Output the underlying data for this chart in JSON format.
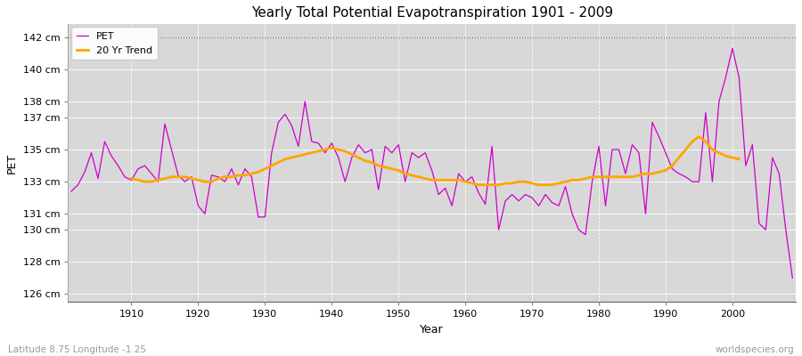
{
  "title": "Yearly Total Potential Evapotranspiration 1901 - 2009",
  "xlabel": "Year",
  "ylabel": "PET",
  "subtitle_left": "Latitude 8.75 Longitude -1.25",
  "subtitle_right": "worldspecies.org",
  "pet_color": "#cc00cc",
  "trend_color": "#ffa500",
  "fig_bg_color": "#ffffff",
  "plot_bg_color": "#d8d8d8",
  "ylim": [
    125.5,
    142.8
  ],
  "yticks": [
    126,
    128,
    130,
    131,
    133,
    135,
    137,
    138,
    140,
    142
  ],
  "ytick_labels": [
    "126 cm",
    "128 cm",
    "130 cm",
    "131 cm",
    "133 cm",
    "135 cm",
    "137 cm",
    "138 cm",
    "140 cm",
    "142 cm"
  ],
  "xlim": [
    1900.5,
    2009.5
  ],
  "xticks": [
    1910,
    1920,
    1930,
    1940,
    1950,
    1960,
    1970,
    1980,
    1990,
    2000
  ],
  "years": [
    1901,
    1902,
    1903,
    1904,
    1905,
    1906,
    1907,
    1908,
    1909,
    1910,
    1911,
    1912,
    1913,
    1914,
    1915,
    1916,
    1917,
    1918,
    1919,
    1920,
    1921,
    1922,
    1923,
    1924,
    1925,
    1926,
    1927,
    1928,
    1929,
    1930,
    1931,
    1932,
    1933,
    1934,
    1935,
    1936,
    1937,
    1938,
    1939,
    1940,
    1941,
    1942,
    1943,
    1944,
    1945,
    1946,
    1947,
    1948,
    1949,
    1950,
    1951,
    1952,
    1953,
    1954,
    1955,
    1956,
    1957,
    1958,
    1959,
    1960,
    1961,
    1962,
    1963,
    1964,
    1965,
    1966,
    1967,
    1968,
    1969,
    1970,
    1971,
    1972,
    1973,
    1974,
    1975,
    1976,
    1977,
    1978,
    1979,
    1980,
    1981,
    1982,
    1983,
    1984,
    1985,
    1986,
    1987,
    1988,
    1989,
    1990,
    1991,
    1992,
    1993,
    1994,
    1995,
    1996,
    1997,
    1998,
    1999,
    2000,
    2001,
    2002,
    2003,
    2004,
    2005,
    2006,
    2007,
    2008,
    2009
  ],
  "pet_values": [
    132.4,
    132.8,
    133.6,
    134.8,
    133.2,
    135.5,
    134.6,
    134.0,
    133.3,
    133.1,
    133.8,
    134.0,
    133.5,
    133.0,
    136.6,
    135.0,
    133.4,
    133.0,
    133.3,
    131.5,
    131.0,
    133.4,
    133.3,
    133.0,
    133.8,
    132.8,
    133.8,
    133.3,
    130.8,
    130.8,
    134.8,
    136.7,
    137.2,
    136.5,
    135.2,
    138.0,
    135.5,
    135.4,
    134.8,
    135.4,
    134.5,
    133.0,
    134.5,
    135.3,
    134.8,
    135.0,
    132.5,
    135.2,
    134.8,
    135.3,
    133.0,
    134.8,
    134.5,
    134.8,
    133.7,
    132.2,
    132.6,
    131.5,
    133.5,
    133.0,
    133.3,
    132.3,
    131.6,
    135.2,
    130.0,
    131.8,
    132.2,
    131.8,
    132.2,
    132.0,
    131.5,
    132.2,
    131.7,
    131.5,
    132.7,
    131.0,
    130.0,
    129.7,
    133.0,
    135.2,
    131.5,
    135.0,
    135.0,
    133.5,
    135.3,
    134.8,
    131.0,
    136.7,
    135.8,
    134.8,
    133.8,
    133.5,
    133.3,
    133.0,
    133.0,
    137.3,
    133.0,
    138.0,
    139.5,
    141.3,
    139.5,
    134.0,
    135.3,
    130.4,
    130.0,
    134.5,
    133.5,
    130.0,
    127.0
  ],
  "trend_values": [
    null,
    null,
    null,
    null,
    null,
    null,
    null,
    null,
    null,
    133.2,
    133.1,
    133.0,
    133.0,
    133.1,
    133.2,
    133.3,
    133.3,
    133.3,
    133.2,
    133.1,
    133.0,
    133.0,
    133.2,
    133.3,
    133.3,
    133.4,
    133.4,
    133.5,
    133.6,
    133.8,
    134.0,
    134.2,
    134.4,
    134.5,
    134.6,
    134.7,
    134.8,
    134.9,
    135.0,
    135.1,
    135.0,
    134.9,
    134.7,
    134.5,
    134.3,
    134.2,
    134.0,
    133.9,
    133.8,
    133.7,
    133.5,
    133.4,
    133.3,
    133.2,
    133.1,
    133.1,
    133.1,
    133.1,
    133.1,
    133.0,
    132.9,
    132.8,
    132.8,
    132.8,
    132.8,
    132.9,
    132.9,
    133.0,
    133.0,
    132.9,
    132.8,
    132.8,
    132.8,
    132.9,
    133.0,
    133.1,
    133.1,
    133.2,
    133.3,
    133.3,
    133.3,
    133.3,
    133.3,
    133.3,
    133.3,
    133.4,
    133.5,
    133.5,
    133.6,
    133.7,
    134.0,
    134.5,
    135.0,
    135.5,
    135.8,
    135.5,
    135.0,
    134.8,
    134.6,
    134.5,
    134.4,
    null,
    null,
    null,
    null,
    null,
    null,
    null,
    null,
    null
  ]
}
